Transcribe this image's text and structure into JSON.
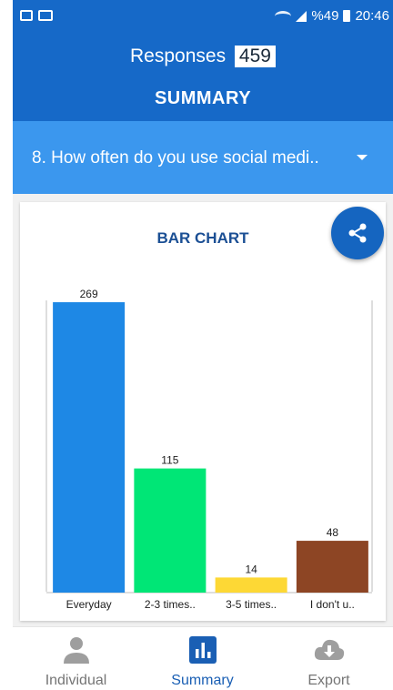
{
  "status_bar": {
    "left_icons": [
      "image-icon",
      "video-camera-icon"
    ],
    "battery_text": "%49",
    "time": "20:46"
  },
  "header": {
    "responses_label": "Responses",
    "responses_count": "459",
    "section_title": "SUMMARY",
    "color": "#1669c8"
  },
  "question": {
    "text": "8. How often do you use  social medi..",
    "color": "#3b97ee"
  },
  "card": {
    "title": "BAR CHART",
    "share_icon": "share-icon"
  },
  "chart_data": {
    "type": "bar",
    "title": "BAR CHART",
    "categories": [
      "Everyday",
      "2-3 times..",
      "3-5 times..",
      "I don't u.."
    ],
    "values": [
      269,
      115,
      14,
      48
    ],
    "colors": [
      "#1e88e5",
      "#00e676",
      "#fdd835",
      "#8d4524"
    ],
    "ylim": [
      0,
      269
    ],
    "grid": false,
    "legend": "none"
  },
  "bottom_nav": [
    {
      "label": "Individual",
      "icon": "person-icon",
      "active": false
    },
    {
      "label": "Summary",
      "icon": "bar-chart-icon",
      "active": true
    },
    {
      "label": "Export",
      "icon": "cloud-download-icon",
      "active": false
    }
  ]
}
